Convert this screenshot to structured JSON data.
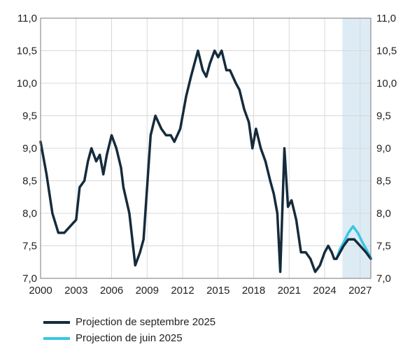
{
  "chart_data": {
    "type": "line",
    "title": "",
    "xlabel": "",
    "ylabel": "",
    "xlim": [
      2000,
      2027.9
    ],
    "ylim": [
      7.0,
      11.0
    ],
    "x_ticks": [
      "2000",
      "2003",
      "2006",
      "2009",
      "2012",
      "2015",
      "2018",
      "2021",
      "2024",
      "2027"
    ],
    "y_ticks_left": [
      "7,0",
      "7,5",
      "8,0",
      "8,5",
      "9,0",
      "9,5",
      "10,0",
      "10,5",
      "11,0"
    ],
    "y_ticks_right": [
      "7,0",
      "7,5",
      "8,0",
      "8,5",
      "9,0",
      "9,5",
      "10,0",
      "10,5",
      "11,0"
    ],
    "grid": true,
    "projection_shading_from": 2025.5,
    "series": [
      {
        "name": "Projection de septembre 2025",
        "color": "#152b3c",
        "points": [
          [
            2000.0,
            9.1
          ],
          [
            2000.5,
            8.6
          ],
          [
            2001.0,
            8.0
          ],
          [
            2001.5,
            7.7
          ],
          [
            2002.0,
            7.7
          ],
          [
            2002.5,
            7.8
          ],
          [
            2003.0,
            7.9
          ],
          [
            2003.3,
            8.4
          ],
          [
            2003.7,
            8.5
          ],
          [
            2004.0,
            8.8
          ],
          [
            2004.3,
            9.0
          ],
          [
            2004.7,
            8.8
          ],
          [
            2005.0,
            8.9
          ],
          [
            2005.3,
            8.6
          ],
          [
            2005.6,
            8.9
          ],
          [
            2006.0,
            9.2
          ],
          [
            2006.4,
            9.0
          ],
          [
            2006.8,
            8.7
          ],
          [
            2007.0,
            8.4
          ],
          [
            2007.5,
            8.0
          ],
          [
            2008.0,
            7.2
          ],
          [
            2008.4,
            7.4
          ],
          [
            2008.7,
            7.6
          ],
          [
            2009.3,
            9.2
          ],
          [
            2009.7,
            9.5
          ],
          [
            2010.2,
            9.3
          ],
          [
            2010.6,
            9.2
          ],
          [
            2011.0,
            9.2
          ],
          [
            2011.3,
            9.1
          ],
          [
            2011.8,
            9.3
          ],
          [
            2012.3,
            9.8
          ],
          [
            2012.7,
            10.1
          ],
          [
            2013.0,
            10.3
          ],
          [
            2013.3,
            10.5
          ],
          [
            2013.7,
            10.2
          ],
          [
            2014.0,
            10.1
          ],
          [
            2014.3,
            10.3
          ],
          [
            2014.7,
            10.5
          ],
          [
            2015.0,
            10.4
          ],
          [
            2015.3,
            10.5
          ],
          [
            2015.7,
            10.2
          ],
          [
            2016.0,
            10.2
          ],
          [
            2016.5,
            10.0
          ],
          [
            2016.8,
            9.9
          ],
          [
            2017.2,
            9.6
          ],
          [
            2017.6,
            9.4
          ],
          [
            2017.9,
            9.0
          ],
          [
            2018.2,
            9.3
          ],
          [
            2018.6,
            9.0
          ],
          [
            2019.0,
            8.8
          ],
          [
            2019.4,
            8.5
          ],
          [
            2019.7,
            8.3
          ],
          [
            2020.0,
            8.0
          ],
          [
            2020.25,
            7.1
          ],
          [
            2020.6,
            9.0
          ],
          [
            2020.9,
            8.1
          ],
          [
            2021.2,
            8.2
          ],
          [
            2021.6,
            7.9
          ],
          [
            2022.0,
            7.4
          ],
          [
            2022.4,
            7.4
          ],
          [
            2022.8,
            7.3
          ],
          [
            2023.2,
            7.1
          ],
          [
            2023.6,
            7.2
          ],
          [
            2024.0,
            7.4
          ],
          [
            2024.3,
            7.5
          ],
          [
            2024.6,
            7.4
          ],
          [
            2024.8,
            7.3
          ],
          [
            2025.0,
            7.3
          ],
          [
            2025.3,
            7.4
          ],
          [
            2025.6,
            7.5
          ],
          [
            2026.0,
            7.6
          ],
          [
            2026.5,
            7.6
          ],
          [
            2027.0,
            7.5
          ],
          [
            2027.5,
            7.4
          ],
          [
            2027.9,
            7.3
          ]
        ]
      },
      {
        "name": "Projection de juin 2025",
        "color": "#38c6e4",
        "points": [
          [
            2025.0,
            7.3
          ],
          [
            2025.3,
            7.45
          ],
          [
            2025.6,
            7.55
          ],
          [
            2026.0,
            7.7
          ],
          [
            2026.4,
            7.8
          ],
          [
            2026.8,
            7.7
          ],
          [
            2027.2,
            7.55
          ],
          [
            2027.6,
            7.42
          ],
          [
            2027.9,
            7.32
          ]
        ]
      }
    ]
  }
}
